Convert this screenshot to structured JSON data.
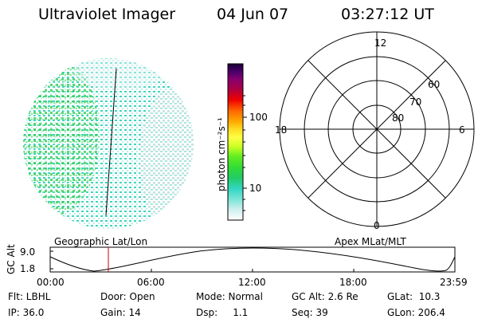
{
  "header": {
    "title": "Ultraviolet Imager",
    "date": "04 Jun 07",
    "time": "03:27:12 UT"
  },
  "colorbar": {
    "unit_label": "photon cm⁻²s⁻¹",
    "ticks": [
      {
        "label": "100",
        "value": 100
      },
      {
        "label": "10",
        "value": 10
      }
    ]
  },
  "polar_plot": {
    "label_top": "12",
    "label_bottom": "0",
    "label_left": "18",
    "label_right": "6",
    "lat_labels": [
      "60",
      "70",
      "80"
    ]
  },
  "timeline": {
    "y_axis_label": "GC Alt",
    "y_ticks": [
      "9.0",
      "1.8"
    ],
    "left_title": "Geographic Lat/Lon",
    "right_title": "Apex MLat/MLT",
    "time_ticks": [
      "00:00",
      "06:00",
      "12:00",
      "18:00",
      "23:59"
    ],
    "marker_hours": 3.45
  },
  "status": {
    "flt": "Flt: LBHL",
    "ip": "IP: 36.0",
    "door": "Door: Open",
    "gain": "Gain: 14",
    "mode": "Mode: Normal",
    "dsp": "Dsp:     1.1",
    "gc_alt": "GC Alt: 2.6 Re",
    "seq": "Seq: 39",
    "glat": "GLat:  10.3",
    "glon": "GLon: 206.4"
  },
  "colors": {
    "marker": "#cc0000"
  }
}
